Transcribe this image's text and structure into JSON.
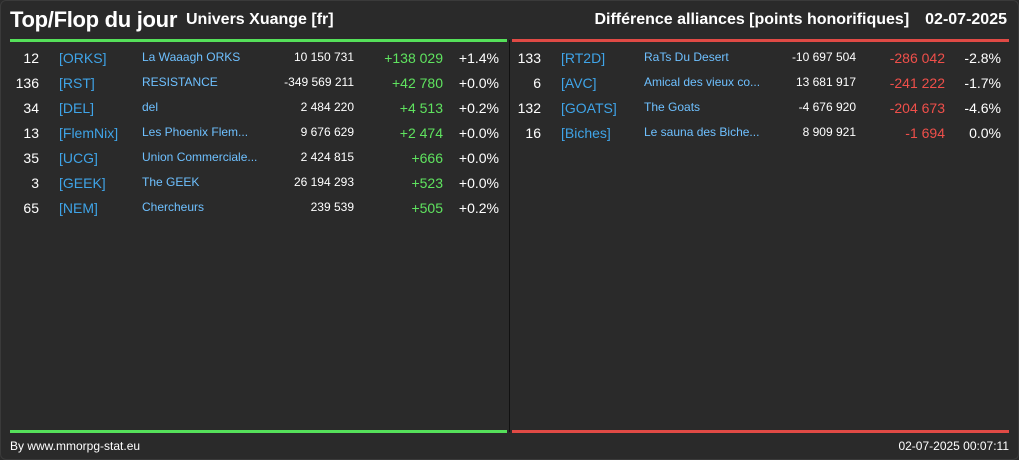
{
  "header": {
    "title": "Top/Flop du jour",
    "subtitle": "Univers Xuange [fr]",
    "category": "Différence alliances [points honorifiques]",
    "date": "02-07-2025"
  },
  "colors": {
    "accent_positive": "#55e05a",
    "accent_negative": "#e04a45",
    "tag": "#3fa4e8"
  },
  "top": [
    {
      "rank": "12",
      "tag": "[ORKS]",
      "name": "La Waaagh ORKS",
      "points": "10 150 731",
      "diff": "+138 029",
      "pct": "+1.4%"
    },
    {
      "rank": "136",
      "tag": "[RST]",
      "name": "RESISTANCE",
      "points": "-349 569 211",
      "diff": "+42 780",
      "pct": "+0.0%"
    },
    {
      "rank": "34",
      "tag": "[DEL]",
      "name": "del",
      "points": "2 484 220",
      "diff": "+4 513",
      "pct": "+0.2%"
    },
    {
      "rank": "13",
      "tag": "[FlemNix]",
      "name": "Les Phoenix Flem...",
      "points": "9 676 629",
      "diff": "+2 474",
      "pct": "+0.0%"
    },
    {
      "rank": "35",
      "tag": "[UCG]",
      "name": "Union Commerciale...",
      "points": "2 424 815",
      "diff": "+666",
      "pct": "+0.0%"
    },
    {
      "rank": "3",
      "tag": "[GEEK]",
      "name": "The GEEK",
      "points": "26 194 293",
      "diff": "+523",
      "pct": "+0.0%"
    },
    {
      "rank": "65",
      "tag": "[NEM]",
      "name": "Chercheurs",
      "points": "239 539",
      "diff": "+505",
      "pct": "+0.2%"
    }
  ],
  "flop": [
    {
      "rank": "133",
      "tag": "[RT2D]",
      "name": "RaTs Du Desert",
      "points": "-10 697 504",
      "diff": "-286 042",
      "pct": "-2.8%"
    },
    {
      "rank": "6",
      "tag": "[AVC]",
      "name": "Amical des vieux co...",
      "points": "13 681 917",
      "diff": "-241 222",
      "pct": "-1.7%"
    },
    {
      "rank": "132",
      "tag": "[GOATS]",
      "name": "The Goats",
      "points": "-4 676 920",
      "diff": "-204 673",
      "pct": "-4.6%"
    },
    {
      "rank": "16",
      "tag": "[Biches]",
      "name": "Le sauna des Biche...",
      "points": "8 909 921",
      "diff": "-1 694",
      "pct": "0.0%"
    }
  ],
  "footer": {
    "credit": "By www.mmorpg-stat.eu",
    "timestamp": "02-07-2025 00:07:11"
  }
}
